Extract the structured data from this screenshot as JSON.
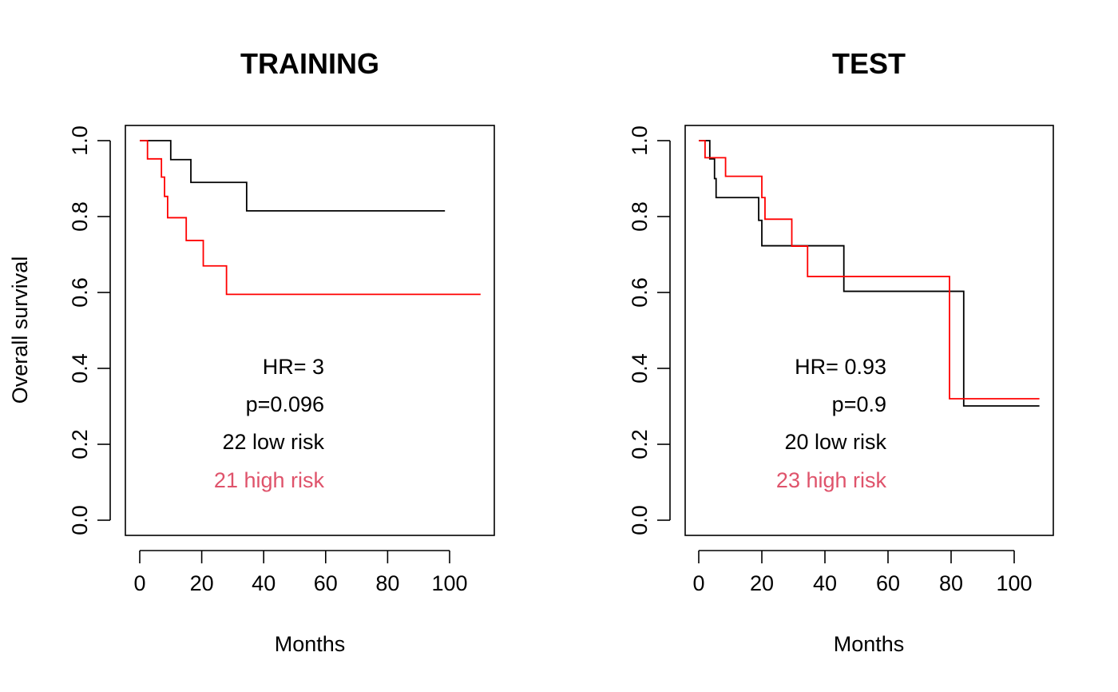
{
  "chart_data": [
    {
      "type": "line",
      "subtype": "kaplan-meier",
      "title": "TRAINING",
      "xlabel": "Months",
      "ylabel": "Overall survival",
      "xlim": [
        0,
        110
      ],
      "ylim": [
        0,
        1
      ],
      "x_ticks": [
        "0",
        "20",
        "40",
        "60",
        "80",
        "100"
      ],
      "y_ticks": [
        "0.0",
        "0.2",
        "0.4",
        "0.6",
        "0.8",
        "1.0"
      ],
      "series": [
        {
          "name": "low risk",
          "color": "#000000",
          "steps": [
            [
              0,
              1.0
            ],
            [
              10,
              0.95
            ],
            [
              16.5,
              0.89
            ],
            [
              34.5,
              0.815
            ],
            [
              98.5,
              0.815
            ]
          ]
        },
        {
          "name": "high risk",
          "color": "#ff0000",
          "steps": [
            [
              0,
              1.0
            ],
            [
              2.5,
              0.952
            ],
            [
              7,
              0.904
            ],
            [
              8,
              0.853
            ],
            [
              9,
              0.797
            ],
            [
              15,
              0.737
            ],
            [
              20.5,
              0.67
            ],
            [
              28,
              0.595
            ],
            [
              110,
              0.595
            ]
          ]
        }
      ],
      "annotations": [
        {
          "text": "HR= 3",
          "color": "#000000"
        },
        {
          "text": "p=0.096",
          "color": "#000000"
        },
        {
          "text": "22 low risk",
          "color": "#000000"
        },
        {
          "text": "21 high risk",
          "color": "#df536b"
        }
      ]
    },
    {
      "type": "line",
      "subtype": "kaplan-meier",
      "title": "TEST",
      "xlabel": "Months",
      "ylabel": "",
      "xlim": [
        0,
        108
      ],
      "ylim": [
        0,
        1
      ],
      "x_ticks": [
        "0",
        "20",
        "40",
        "60",
        "80",
        "100"
      ],
      "y_ticks": [
        "0.0",
        "0.2",
        "0.4",
        "0.6",
        "0.8",
        "1.0"
      ],
      "series": [
        {
          "name": "low risk",
          "color": "#000000",
          "steps": [
            [
              0,
              1.0
            ],
            [
              3.5,
              0.952
            ],
            [
              5,
              0.9
            ],
            [
              5.5,
              0.85
            ],
            [
              19,
              0.79
            ],
            [
              20,
              0.723
            ],
            [
              46,
              0.603
            ],
            [
              84,
              0.301
            ],
            [
              108,
              0.301
            ]
          ]
        },
        {
          "name": "high risk",
          "color": "#ff0000",
          "steps": [
            [
              0,
              1.0
            ],
            [
              2,
              0.955
            ],
            [
              8.5,
              0.906
            ],
            [
              20,
              0.85
            ],
            [
              21,
              0.793
            ],
            [
              29.5,
              0.722
            ],
            [
              34.5,
              0.642
            ],
            [
              79.5,
              0.32
            ],
            [
              108,
              0.32
            ]
          ]
        }
      ],
      "annotations": [
        {
          "text": "HR= 0.93",
          "color": "#000000"
        },
        {
          "text": "p=0.9",
          "color": "#000000"
        },
        {
          "text": "20 low risk",
          "color": "#000000"
        },
        {
          "text": "23 high risk",
          "color": "#df536b"
        }
      ]
    }
  ]
}
